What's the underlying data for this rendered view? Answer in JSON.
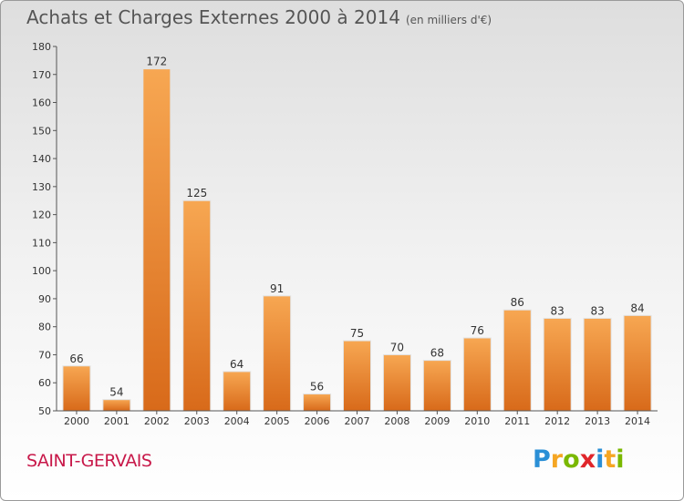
{
  "title": "Achats et Charges Externes 2000 à 2014",
  "unit": "(en milliers d'€)",
  "commune": "SAINT-GERVAIS",
  "logo": {
    "text": "Proxiti",
    "letters": [
      {
        "ch": "P",
        "color": "#2a8fd6"
      },
      {
        "ch": "r",
        "color": "#f5a623"
      },
      {
        "ch": "o",
        "color": "#7ab800"
      },
      {
        "ch": "x",
        "color": "#e0262b"
      },
      {
        "ch": "i",
        "color": "#2a8fd6"
      },
      {
        "ch": "t",
        "color": "#f5a623"
      },
      {
        "ch": "i",
        "color": "#7ab800"
      }
    ]
  },
  "chart_data": {
    "type": "bar",
    "categories": [
      "2000",
      "2001",
      "2002",
      "2003",
      "2004",
      "2005",
      "2006",
      "2007",
      "2008",
      "2009",
      "2010",
      "2011",
      "2012",
      "2013",
      "2014"
    ],
    "values": [
      66,
      54,
      172,
      125,
      64,
      91,
      56,
      75,
      70,
      68,
      76,
      86,
      83,
      83,
      84
    ],
    "ylim": [
      50,
      180
    ],
    "yticks": [
      50,
      60,
      70,
      80,
      90,
      100,
      110,
      120,
      130,
      140,
      150,
      160,
      170,
      180
    ],
    "bar_color": "#f0913a",
    "grid": false
  }
}
